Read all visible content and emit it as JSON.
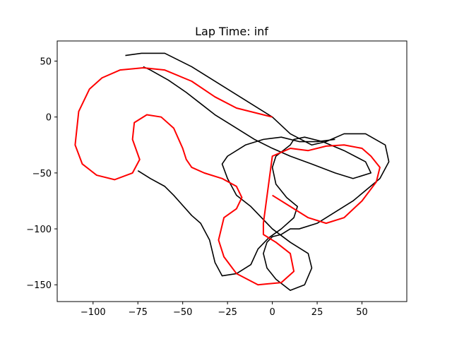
{
  "chart_data": {
    "type": "line",
    "title": "Lap Time: inf",
    "xlabel": "",
    "ylabel": "",
    "xlim": [
      -120,
      75
    ],
    "ylim": [
      -165,
      68
    ],
    "x_ticks": [
      -100,
      -75,
      -50,
      -25,
      0,
      25,
      50
    ],
    "y_ticks": [
      50,
      0,
      -50,
      -100,
      -150
    ],
    "x_tick_labels": [
      "−100",
      "−75",
      "−50",
      "−25",
      "0",
      "25",
      "50"
    ],
    "y_tick_labels": [
      "50",
      "0",
      "−50",
      "−100",
      "−150"
    ],
    "grid": false,
    "series": [
      {
        "color": "#000000",
        "style": "solid",
        "x": [
          -82,
          -73,
          -60,
          -45,
          -30,
          -15,
          0,
          10,
          22,
          30,
          40,
          52,
          63,
          65,
          60,
          45,
          25,
          15,
          10,
          8,
          5,
          0,
          -3,
          -5,
          -3,
          2,
          10,
          18,
          22,
          20,
          10,
          0,
          -12,
          -20,
          -25,
          -28,
          -25,
          -15,
          -5,
          5,
          15,
          25,
          35
        ],
        "y": [
          55,
          57,
          57,
          45,
          30,
          15,
          0,
          -15,
          -25,
          -22,
          -15,
          -15,
          -25,
          -40,
          -55,
          -75,
          -95,
          -100,
          -100,
          -102,
          -105,
          -107,
          -112,
          -122,
          -135,
          -145,
          -155,
          -150,
          -135,
          -122,
          -112,
          -100,
          -80,
          -70,
          -55,
          -42,
          -35,
          -25,
          -20,
          -18,
          -22,
          -22,
          -20
        ]
      },
      {
        "color": "#000000",
        "style": "solid",
        "x": [
          -72,
          -68,
          -58,
          -48,
          -40,
          -32,
          -22,
          -10,
          0,
          10,
          22,
          35,
          45,
          55,
          52,
          40,
          28,
          18,
          12,
          10,
          6,
          2,
          0,
          2,
          8,
          14,
          12,
          5,
          -2,
          -8,
          -12,
          -20,
          -28,
          -32,
          -35,
          -40,
          -45,
          -55,
          -60,
          -68,
          -75
        ],
        "y": [
          45,
          42,
          33,
          22,
          12,
          2,
          -8,
          -20,
          -28,
          -35,
          -42,
          -50,
          -55,
          -50,
          -40,
          -30,
          -22,
          -18,
          -20,
          -25,
          -30,
          -35,
          -45,
          -60,
          -72,
          -80,
          -90,
          -100,
          -108,
          -118,
          -132,
          -140,
          -142,
          -130,
          -110,
          -95,
          -88,
          -70,
          -62,
          -55,
          -48
        ]
      },
      {
        "color": "#ff0000",
        "style": "solid",
        "x": [
          0,
          -10,
          -20,
          -32,
          -45,
          -60,
          -72,
          -85,
          -95,
          -102,
          -108,
          -110,
          -106,
          -98,
          -88,
          -78,
          -74,
          -78,
          -77,
          -70,
          -62,
          -55,
          -50,
          -48,
          -45,
          -38,
          -28,
          -20,
          -17,
          -20,
          -27,
          -30,
          -27,
          -20,
          -8,
          5,
          12,
          10,
          2,
          -5,
          -5,
          0,
          10,
          20,
          30,
          40,
          50,
          55,
          60,
          58,
          50,
          40,
          30,
          20,
          10,
          0
        ],
        "y": [
          0,
          4,
          8,
          18,
          32,
          42,
          44,
          42,
          35,
          25,
          5,
          -25,
          -42,
          -52,
          -56,
          -50,
          -38,
          -20,
          -5,
          2,
          0,
          -10,
          -28,
          -38,
          -45,
          -50,
          -55,
          -62,
          -72,
          -82,
          -90,
          -110,
          -125,
          -140,
          -150,
          -148,
          -138,
          -122,
          -112,
          -105,
          -95,
          -35,
          -28,
          -30,
          -26,
          -25,
          -28,
          -35,
          -45,
          -58,
          -75,
          -90,
          -95,
          -90,
          -80,
          -70
        ]
      }
    ],
    "colors": {
      "track": "#000000",
      "racing_line": "#ff0000",
      "racing_line_light": "#f08080"
    }
  }
}
